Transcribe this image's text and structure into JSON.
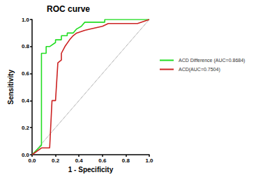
{
  "chart_data": {
    "type": "line",
    "title": "ROC curve",
    "x_label": "1 - Specificity",
    "y_label": "Sensitivity",
    "xlim": [
      0,
      1
    ],
    "ylim": [
      0,
      1
    ],
    "xticks": [
      {
        "value": 0,
        "label": "0.0"
      },
      0.2,
      0.4,
      0.6,
      0.8,
      {
        "value": 1,
        "label": "1.0"
      }
    ],
    "yticks": [
      {
        "value": 0,
        "label": "0.0"
      },
      0.2,
      0.4,
      0.6,
      0.8,
      {
        "value": 1,
        "label": "1.0"
      }
    ],
    "grid": false,
    "legend": "right",
    "marker": "none",
    "series": [
      {
        "name": "ACD Difference (AUC=0.8684)",
        "color": "#22dd22",
        "line_style": "solid",
        "x": [
          0,
          0.08,
          0.08,
          0.12,
          0.12,
          0.15,
          0.2,
          0.2,
          0.25,
          0.25,
          0.3,
          0.3,
          0.35,
          0.38,
          0.42,
          0.45,
          0.62,
          0.62,
          1
        ],
        "values": [
          0,
          0.07,
          0.75,
          0.75,
          0.8,
          0.8,
          0.83,
          0.85,
          0.85,
          0.88,
          0.88,
          0.9,
          0.9,
          0.93,
          0.95,
          0.98,
          0.98,
          1,
          1
        ]
      },
      {
        "name": "ACD(AUC=0.7504)",
        "color": "#cc2222",
        "line_style": "solid",
        "x": [
          0,
          0.08,
          0.15,
          0.17,
          0.2,
          0.22,
          0.25,
          0.25,
          0.28,
          0.32,
          0.35,
          0.38,
          0.45,
          0.5,
          0.6,
          0.65,
          0.9,
          1
        ],
        "values": [
          0,
          0.05,
          0.05,
          0.4,
          0.4,
          0.68,
          0.7,
          0.75,
          0.8,
          0.85,
          0.88,
          0.9,
          0.92,
          0.93,
          0.95,
          0.97,
          0.97,
          1
        ]
      },
      {
        "color": "#555555",
        "line_style": "dotted",
        "x": [
          0,
          1
        ],
        "values": [
          0,
          1
        ]
      }
    ]
  }
}
